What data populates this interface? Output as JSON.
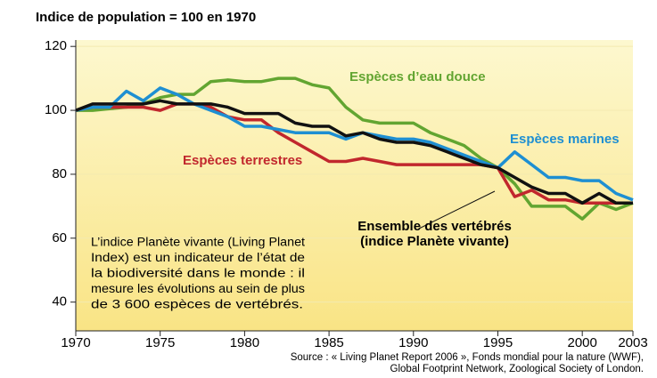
{
  "chart_data": {
    "type": "line",
    "title": "Indice de population = 100 en 1970",
    "x": [
      1970,
      1971,
      1972,
      1973,
      1974,
      1975,
      1976,
      1977,
      1978,
      1979,
      1980,
      1981,
      1982,
      1983,
      1984,
      1985,
      1986,
      1987,
      1988,
      1989,
      1990,
      1991,
      1992,
      1993,
      1994,
      1995,
      1996,
      1997,
      1998,
      1999,
      2000,
      2001,
      2002,
      2003
    ],
    "series": [
      {
        "name": "Espèces d’eau douce",
        "color": "#62a531",
        "values": [
          100,
          100,
          100.5,
          101,
          102,
          104,
          105,
          105,
          109,
          109.5,
          109,
          109,
          110,
          110,
          108,
          107,
          101,
          97,
          96,
          96,
          96,
          93,
          91,
          89,
          85,
          82,
          77,
          70,
          70,
          70,
          66,
          71,
          69,
          71
        ]
      },
      {
        "name": "Espèces marines",
        "color": "#1e8fd2",
        "values": [
          100,
          101,
          101,
          106,
          103,
          107,
          105,
          102,
          100,
          98,
          95,
          95,
          94,
          93,
          93,
          93,
          91,
          93,
          92,
          91,
          91,
          90,
          88,
          86,
          84,
          82,
          87,
          83,
          79,
          79,
          78,
          78,
          74,
          72
        ]
      },
      {
        "name": "Espèces terrestres",
        "color": "#c1272d",
        "values": [
          100,
          101,
          101,
          101,
          101,
          100,
          102,
          102,
          101,
          98,
          97,
          97,
          93,
          90,
          87,
          84,
          84,
          85,
          84,
          83,
          83,
          83,
          83,
          83,
          83,
          82,
          73,
          75,
          72,
          72,
          71,
          71,
          71,
          71
        ]
      },
      {
        "name": "Ensemble des vertébrés (indice Planète vivante)",
        "color": "#111111",
        "values": [
          100,
          102,
          102,
          102,
          102,
          103,
          102,
          102,
          102,
          101,
          99,
          99,
          99,
          96,
          95,
          95,
          92,
          93,
          91,
          90,
          90,
          89,
          87,
          85,
          83,
          82,
          79,
          76,
          74,
          74,
          71,
          74,
          71,
          71
        ]
      }
    ],
    "xlim": [
      1970,
      2003
    ],
    "xticks": [
      1970,
      1975,
      1980,
      1985,
      1990,
      1995,
      2000,
      2003
    ],
    "ylim": [
      31,
      122
    ],
    "yticks": [
      40,
      60,
      80,
      100,
      120
    ],
    "grid": true,
    "note": [
      "L’indice Planète vivante (Living Planet",
      "Index) est un indicateur de l’état de",
      "la biodiversité dans le monde : il",
      "mesure les évolutions au sein de plus",
      "de 3 600 espèces de vertébrés."
    ],
    "source": [
      "Source : « Living Planet Report 2006 », Fonds mondial pour la nature (WWF),",
      "Global Footprint Network, Zoological Society of London."
    ]
  }
}
